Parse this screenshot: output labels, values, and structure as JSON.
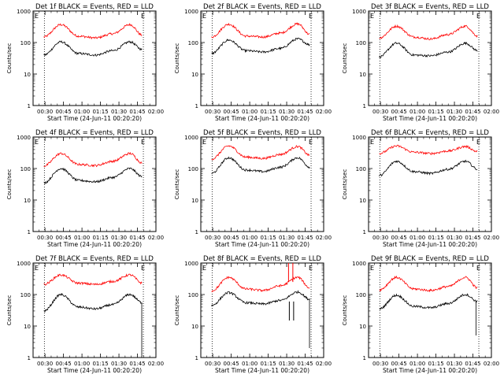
{
  "figure": {
    "ylabel": "Counts/sec",
    "xlabel": "Start Time (24-Jun-11 00:20:20)",
    "y_ticks": [
      "1",
      "10",
      "100",
      "1000"
    ],
    "x_ticks": [
      "00:30",
      "00:45",
      "01:00",
      "01:15",
      "01:30",
      "01:45",
      "02:00"
    ],
    "marker_labels": [
      "E",
      "E"
    ],
    "series_colors": {
      "events": "#000000",
      "lld": "#ff0000"
    }
  },
  "chart_data": [
    {
      "type": "line",
      "title": "Det 1f BLACK = Events, RED = LLD",
      "x_range_min": [
        20.33,
        120
      ],
      "ylim": [
        1,
        1000
      ],
      "y_scale": "log",
      "grid": false,
      "markers_min": [
        29.5,
        109.8
      ],
      "x_min": [
        29,
        43,
        57,
        71,
        85,
        99,
        109
      ],
      "series": [
        {
          "values": [
            40,
            105,
            45,
            40,
            55,
            105,
            60
          ]
        },
        {
          "values": [
            150,
            370,
            160,
            140,
            190,
            370,
            170
          ]
        }
      ]
    },
    {
      "type": "line",
      "title": "Det 2f BLACK = Events, RED = LLD",
      "x_range_min": [
        20.33,
        120
      ],
      "ylim": [
        1,
        1000
      ],
      "y_scale": "log",
      "grid": false,
      "markers_min": [
        29.5,
        109.8
      ],
      "x_min": [
        29,
        43,
        57,
        71,
        85,
        99,
        109
      ],
      "series": [
        {
          "values": [
            45,
            120,
            55,
            50,
            65,
            130,
            85
          ]
        },
        {
          "values": [
            150,
            380,
            160,
            150,
            200,
            390,
            180
          ]
        }
      ]
    },
    {
      "type": "line",
      "title": "Det 3f BLACK = Events, RED = LLD",
      "x_range_min": [
        20.33,
        120
      ],
      "ylim": [
        1,
        1000
      ],
      "y_scale": "log",
      "grid": false,
      "markers_min": [
        29.5,
        109.8
      ],
      "x_min": [
        29,
        43,
        57,
        71,
        85,
        99,
        109
      ],
      "series": [
        {
          "values": [
            35,
            95,
            40,
            38,
            50,
            95,
            55
          ]
        },
        {
          "values": [
            140,
            330,
            150,
            130,
            180,
            330,
            160
          ]
        }
      ]
    },
    {
      "type": "line",
      "title": "Det 4f BLACK = Events, RED = LLD",
      "x_range_min": [
        20.33,
        120
      ],
      "ylim": [
        1,
        1000
      ],
      "y_scale": "log",
      "grid": false,
      "markers_min": [
        29.5,
        109.8
      ],
      "x_min": [
        29,
        43,
        57,
        71,
        85,
        99,
        109
      ],
      "series": [
        {
          "values": [
            35,
            100,
            42,
            38,
            52,
            100,
            55
          ]
        },
        {
          "values": [
            120,
            300,
            135,
            125,
            170,
            300,
            150
          ]
        }
      ]
    },
    {
      "type": "line",
      "title": "Det 5f BLACK = Events, RED = LLD",
      "x_range_min": [
        20.33,
        120
      ],
      "ylim": [
        1,
        1000
      ],
      "y_scale": "log",
      "grid": false,
      "markers_min": [
        29.5,
        109.8
      ],
      "x_min": [
        29,
        43,
        57,
        71,
        85,
        99,
        109
      ],
      "series": [
        {
          "values": [
            70,
            220,
            90,
            80,
            110,
            220,
            110
          ]
        },
        {
          "values": [
            200,
            520,
            230,
            210,
            280,
            500,
            260
          ]
        }
      ]
    },
    {
      "type": "line",
      "title": "Det 6f BLACK = Events, RED = LLD",
      "x_range_min": [
        20.33,
        120
      ],
      "ylim": [
        1,
        1000
      ],
      "y_scale": "log",
      "grid": false,
      "markers_min": [
        29.5,
        109.8
      ],
      "x_min": [
        29,
        43,
        57,
        71,
        85,
        99,
        109
      ],
      "series": [
        {
          "values": [
            60,
            170,
            80,
            70,
            95,
            170,
            95
          ]
        },
        {
          "values": [
            300,
            520,
            330,
            300,
            360,
            500,
            340
          ]
        }
      ]
    },
    {
      "type": "line",
      "title": "Det 7f BLACK = Events, RED = LLD",
      "x_range_min": [
        20.33,
        120
      ],
      "ylim": [
        1,
        1000
      ],
      "y_scale": "log",
      "grid": false,
      "markers_min": [
        29.5,
        109.8
      ],
      "x_min": [
        29,
        43,
        57,
        71,
        85,
        99,
        109
      ],
      "series": [
        {
          "values": [
            30,
            100,
            40,
            35,
            48,
            100,
            55
          ]
        },
        {
          "values": [
            210,
            420,
            230,
            210,
            260,
            420,
            230
          ]
        }
      ],
      "drop": {
        "x_min": 108.5,
        "to": 1
      }
    },
    {
      "type": "line",
      "title": "Det 8f BLACK = Events, RED = LLD",
      "x_range_min": [
        20.33,
        120
      ],
      "ylim": [
        1,
        1000
      ],
      "y_scale": "log",
      "grid": false,
      "markers_min": [
        29.5,
        109.8
      ],
      "x_min": [
        29,
        43,
        57,
        71,
        85,
        99,
        109
      ],
      "series": [
        {
          "values": [
            45,
            115,
            55,
            50,
            65,
            120,
            70
          ]
        },
        {
          "values": [
            130,
            350,
            150,
            135,
            190,
            350,
            160
          ]
        }
      ],
      "spikes_min": [
        91.5,
        95
      ],
      "drop": {
        "x_min": 108.5,
        "to": 2
      }
    },
    {
      "type": "line",
      "title": "Det 9f BLACK = Events, RED = LLD",
      "x_range_min": [
        20.33,
        120
      ],
      "ylim": [
        1,
        1000
      ],
      "y_scale": "log",
      "grid": false,
      "markers_min": [
        29.5,
        109.8
      ],
      "x_min": [
        29,
        43,
        57,
        71,
        85,
        99,
        109
      ],
      "series": [
        {
          "values": [
            35,
            95,
            42,
            38,
            52,
            100,
            60
          ]
        },
        {
          "values": [
            140,
            350,
            150,
            135,
            180,
            350,
            160
          ]
        }
      ],
      "drop": {
        "x_min": 107.5,
        "to": 5
      }
    }
  ]
}
